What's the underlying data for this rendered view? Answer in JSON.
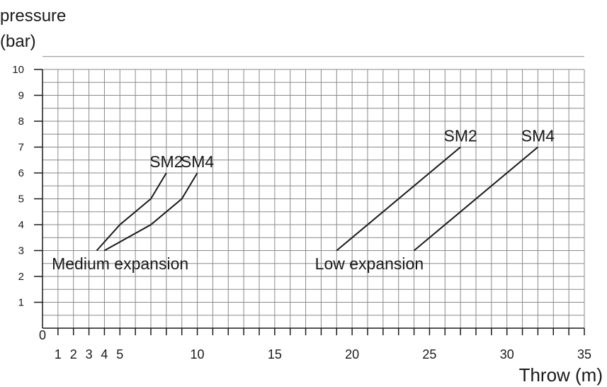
{
  "chart_data": {
    "type": "line",
    "ylabel_line1": "pressure",
    "ylabel_line2": "(bar)",
    "xlabel": "Throw (m)",
    "xlim": [
      0,
      35
    ],
    "ylim": [
      0,
      10
    ],
    "grid": true,
    "yticks": [
      0,
      1,
      2,
      3,
      4,
      5,
      6,
      7,
      8,
      9,
      10
    ],
    "xticks": [
      1,
      2,
      3,
      4,
      5,
      10,
      15,
      20,
      25,
      30,
      35
    ],
    "series": [
      {
        "name": "SM2",
        "group": "Medium expansion",
        "x": [
          3.5,
          5,
          7,
          8
        ],
        "y": [
          3,
          4,
          5,
          6
        ]
      },
      {
        "name": "SM4",
        "group": "Medium expansion",
        "x": [
          4,
          7,
          9,
          10
        ],
        "y": [
          3,
          4,
          5,
          6
        ]
      },
      {
        "name": "SM2",
        "group": "Low expansion",
        "x": [
          19,
          27
        ],
        "y": [
          3,
          7
        ]
      },
      {
        "name": "SM4",
        "group": "Low expansion",
        "x": [
          24,
          32
        ],
        "y": [
          3,
          7
        ]
      }
    ],
    "annotations": [
      {
        "text": "Medium expansion",
        "x": 0.6,
        "y": 2.5
      },
      {
        "text": "Low expansion",
        "x": 17.6,
        "y": 2.5
      }
    ]
  }
}
